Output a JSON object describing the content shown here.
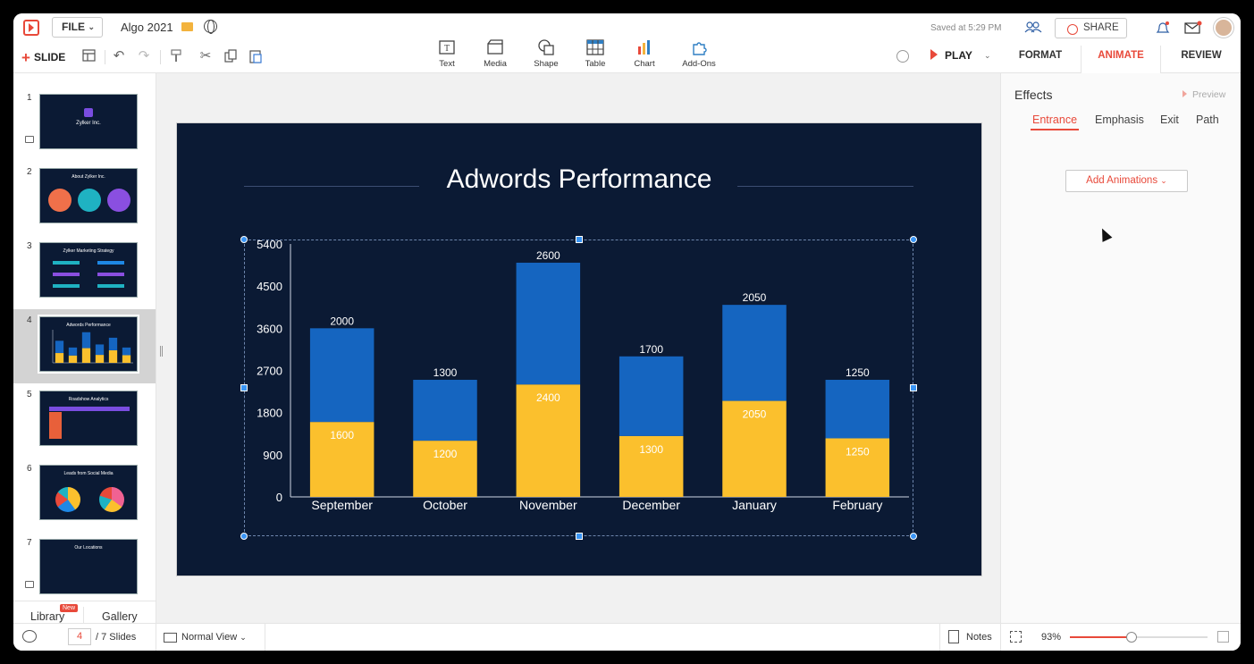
{
  "app": {
    "file_label": "FILE",
    "doc_title": "Algo 2021",
    "saved_status": "Saved at 5:29 PM",
    "share_label": "SHARE",
    "slide_label": "SLIDE",
    "play_label": "PLAY"
  },
  "toolbar": {
    "tools": [
      {
        "label": "Text",
        "icon": "text-icon"
      },
      {
        "label": "Media",
        "icon": "media-icon"
      },
      {
        "label": "Shape",
        "icon": "shape-icon"
      },
      {
        "label": "Table",
        "icon": "table-icon"
      },
      {
        "label": "Chart",
        "icon": "chart-icon"
      },
      {
        "label": "Add-Ons",
        "icon": "addons-icon"
      }
    ]
  },
  "right_tabs": [
    "FORMAT",
    "ANIMATE",
    "REVIEW"
  ],
  "right_panel": {
    "heading": "Effects",
    "preview_label": "Preview",
    "subtabs": [
      "Entrance",
      "Emphasis",
      "Exit",
      "Path"
    ],
    "add_button": "Add Animations"
  },
  "slides": [
    {
      "num": "1",
      "title": "Zylker Inc."
    },
    {
      "num": "2",
      "title": "About Zylker Inc."
    },
    {
      "num": "3",
      "title": "Zylker Marketing Strategy"
    },
    {
      "num": "4",
      "title": "Adwords Performance"
    },
    {
      "num": "5",
      "title": "Roadshow Analytics"
    },
    {
      "num": "6",
      "title": "Leads from Social Media"
    },
    {
      "num": "7",
      "title": "Our Locations"
    }
  ],
  "left_bottom": {
    "library": "Library",
    "new_badge": "New",
    "gallery": "Gallery"
  },
  "status": {
    "current_page": "4",
    "page_total": "/ 7 Slides",
    "view": "Normal View",
    "notes": "Notes",
    "zoom": "93%",
    "zoom_level": 0.45
  },
  "colors": {
    "accent": "#e8493a",
    "slide_bg": "#0b1a34",
    "bar_top": "#1565c0",
    "bar_bottom": "#fbc02d"
  },
  "chart_data": {
    "type": "bar",
    "stacked": true,
    "title": "Adwords Performance",
    "categories": [
      "September",
      "October",
      "November",
      "December",
      "January",
      "February"
    ],
    "series": [
      {
        "values": [
          1600,
          1200,
          2400,
          1300,
          2050,
          1250
        ]
      },
      {
        "values": [
          2000,
          1300,
          2600,
          1700,
          2050,
          1250
        ]
      }
    ],
    "y_ticks": [
      "0",
      "900",
      "1800",
      "2700",
      "3600",
      "4500",
      "5400"
    ],
    "ylim": [
      0,
      5400
    ],
    "grid": false,
    "legend": "none"
  }
}
